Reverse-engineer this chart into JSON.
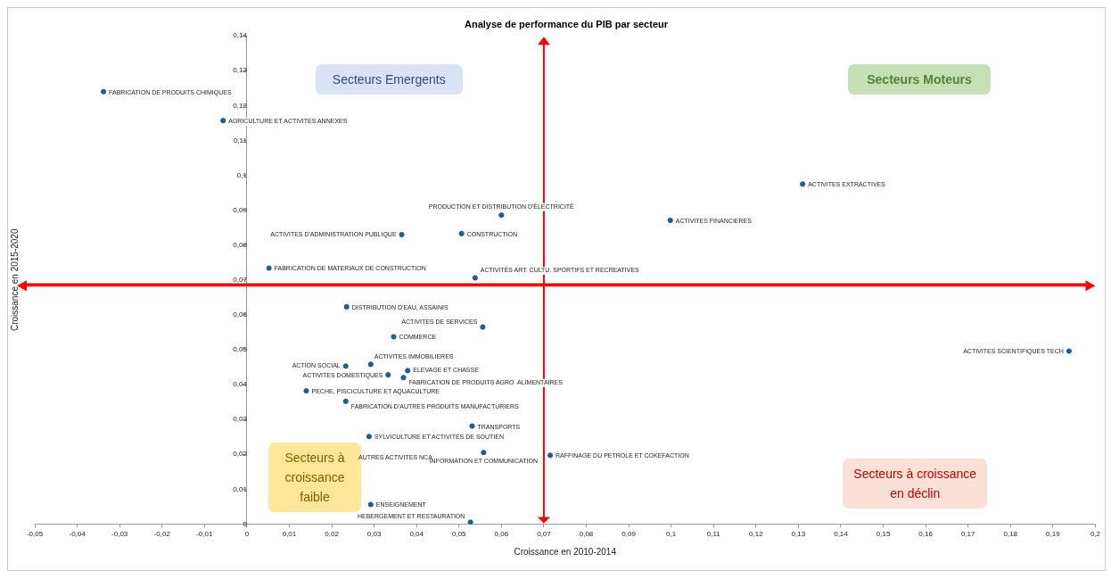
{
  "chart_data": {
    "type": "scatter",
    "title": "Analyse de performance du PIB par secteur",
    "xlabel": "Croissance en 2010-2014",
    "ylabel": "Croissance en 2015-2020",
    "xlim": [
      -0.05,
      0.2
    ],
    "xticks": [
      {
        "value": -0.05,
        "label": "-0,05"
      },
      {
        "value": -0.04,
        "label": "-0,04"
      },
      {
        "value": -0.03,
        "label": "-0,03"
      },
      {
        "value": -0.02,
        "label": "-0,02"
      },
      {
        "value": -0.01,
        "label": "-0,01"
      },
      0,
      {
        "value": 0.01,
        "label": "0,01"
      },
      {
        "value": 0.02,
        "label": "0,02"
      },
      {
        "value": 0.03,
        "label": "0,03"
      },
      {
        "value": 0.04,
        "label": "0,04"
      },
      {
        "value": 0.05,
        "label": "0,05"
      },
      {
        "value": 0.06,
        "label": "0,06"
      },
      {
        "value": 0.07,
        "label": "0,07"
      },
      {
        "value": 0.08,
        "label": "0,08"
      },
      {
        "value": 0.09,
        "label": "0,09"
      },
      {
        "value": 0.1,
        "label": "0,1"
      },
      {
        "value": 0.11,
        "label": "0,11"
      },
      {
        "value": 0.12,
        "label": "0,12"
      },
      {
        "value": 0.13,
        "label": "0,13"
      },
      {
        "value": 0.14,
        "label": "0,14"
      },
      {
        "value": 0.15,
        "label": "0,15"
      },
      {
        "value": 0.16,
        "label": "0,16"
      },
      {
        "value": 0.17,
        "label": "0,17"
      },
      {
        "value": 0.18,
        "label": "0,18"
      },
      {
        "value": 0.19,
        "label": "0,19"
      },
      {
        "value": 0.2,
        "label": "0,2"
      }
    ],
    "ylim": [
      0,
      0.14
    ],
    "yticks": [
      0,
      {
        "value": 0.01,
        "label": "0,01"
      },
      {
        "value": 0.02,
        "label": "0,02"
      },
      {
        "value": 0.03,
        "label": "0,03"
      },
      {
        "value": 0.04,
        "label": "0,04"
      },
      {
        "value": 0.05,
        "label": "0,05"
      },
      {
        "value": 0.06,
        "label": "0,06"
      },
      {
        "value": 0.07,
        "label": "0,07"
      },
      {
        "value": 0.08,
        "label": "0,08"
      },
      {
        "value": 0.09,
        "label": "0,09"
      },
      {
        "value": 0.1,
        "label": "0,1"
      },
      {
        "value": 0.11,
        "label": "0,11"
      },
      {
        "value": 0.12,
        "label": "0,12"
      },
      {
        "value": 0.13,
        "label": "0,13"
      },
      {
        "value": 0.14,
        "label": "0,14"
      }
    ],
    "grid": false,
    "legend": false,
    "marker": "circle",
    "series": [
      {
        "name": "FABRICATION DE PRODUITS CHIMIQUES",
        "color": "#1f5f8b",
        "x": [
          -0.0338
        ],
        "values": [
          0.124
        ]
      },
      {
        "name": "AGRICULTURE ET ACTIVITES ANNEXES",
        "color": "#1f5f8b",
        "x": [
          -0.0056
        ],
        "values": [
          0.1157
        ]
      },
      {
        "name": "PRODUCTION ET DISTRIBUTION D'ÉLECTRICITÉ",
        "color": "#1f5f8b",
        "x": [
          0.06
        ],
        "values": [
          0.0886
        ]
      },
      {
        "name": "ACTIVITES D'ADMINISTRATION PUBLIQUE",
        "color": "#1f5f8b",
        "x": [
          0.0365
        ],
        "values": [
          0.083
        ]
      },
      {
        "name": "CONSTRUCTION",
        "color": "#1f5f8b",
        "x": [
          0.0506
        ],
        "values": [
          0.0833
        ]
      },
      {
        "name": "ACTIVITES EXTRACTIVES",
        "color": "#1f5f8b",
        "x": [
          0.131
        ],
        "values": [
          0.0975
        ]
      },
      {
        "name": "ACTIVITES FINANCIERES",
        "color": "#1f5f8b",
        "x": [
          0.0998
        ],
        "values": [
          0.0871
        ]
      },
      {
        "name": "FABRICATION DE MATERIAUX DE CONSTRUCTION",
        "color": "#1f5f8b",
        "x": [
          0.0052
        ],
        "values": [
          0.0734
        ]
      },
      {
        "name": "ACTIVITÉS ART. CULTU. SPORTIFS ET RECREATIVES",
        "color": "#1f5f8b",
        "x": [
          0.0538
        ],
        "values": [
          0.0706
        ]
      },
      {
        "name": "DISTRIBUTION D'EAU, ASSAINIS",
        "color": "#1f5f8b",
        "x": [
          0.0235
        ],
        "values": [
          0.0623
        ]
      },
      {
        "name": "ACTIVITES DE SERVICES",
        "color": "#1f5f8b",
        "x": [
          0.0556
        ],
        "values": [
          0.0565
        ]
      },
      {
        "name": "COMMERCE",
        "color": "#1f5f8b",
        "x": [
          0.0346
        ],
        "values": [
          0.0537
        ]
      },
      {
        "name": "ACTION SOCIAL",
        "color": "#1f5f8b",
        "x": [
          0.0233
        ],
        "values": [
          0.0453
        ]
      },
      {
        "name": "ACTIVITES IMMOBILIERES",
        "color": "#1f5f8b",
        "x": [
          0.0292
        ],
        "values": [
          0.0458
        ]
      },
      {
        "name": "ELEVAGE ET CHASSE",
        "color": "#1f5f8b",
        "x": [
          0.0379
        ],
        "values": [
          0.044
        ]
      },
      {
        "name": "ACTIVITES DOMESTIQUES",
        "color": "#1f5f8b",
        "x": [
          0.0333
        ],
        "values": [
          0.0428
        ]
      },
      {
        "name": "FABRICATION DE PRODUITS AGRO  ALIMENTAIRES",
        "color": "#1f5f8b",
        "x": [
          0.0369
        ],
        "values": [
          0.042
        ]
      },
      {
        "name": "PECHE, PISCICULTURE ET AQUACULTURE",
        "color": "#1f5f8b",
        "x": [
          0.014
        ],
        "values": [
          0.0382
        ]
      },
      {
        "name": "FABRICATION D'AUTRES PRODUITS MANUFACTURIERS",
        "color": "#1f5f8b",
        "x": [
          0.0233
        ],
        "values": [
          0.0352
        ]
      },
      {
        "name": "TRANSPORTS",
        "color": "#1f5f8b",
        "x": [
          0.0531
        ],
        "values": [
          0.0281
        ]
      },
      {
        "name": "SYLVICULTURE ET ACTIVITÉS DE SOUTIEN",
        "color": "#1f5f8b",
        "x": [
          0.0288
        ],
        "values": [
          0.0251
        ]
      },
      {
        "name": "INFORMATION ET COMMUNICATION",
        "color": "#1f5f8b",
        "x": [
          0.0558
        ],
        "values": [
          0.0205
        ]
      },
      {
        "name": "RAFFINAGE DU PETROLE ET COKEFACTION",
        "color": "#1f5f8b",
        "x": [
          0.0715
        ],
        "values": [
          0.0197
        ]
      },
      {
        "name": "ENSEIGNEMENT",
        "color": "#1f5f8b",
        "x": [
          0.0292
        ],
        "values": [
          0.0056
        ]
      },
      {
        "name": "HEBERGEMENT ET RESTAURATION",
        "color": "#1f5f8b",
        "x": [
          0.0527
        ],
        "values": [
          0.0005
        ]
      },
      {
        "name": "ACTIVITES SCIENTIFIQUES TECH",
        "color": "#1f5f8b",
        "x": [
          0.1938
        ],
        "values": [
          0.0496
        ]
      }
    ],
    "ref_lines": [
      {
        "axis": "x",
        "value": 0.07,
        "color": "#ff0000"
      },
      {
        "axis": "y",
        "value": 0.0686,
        "color": "#ff0000"
      }
    ],
    "annotations": [
      "Secteurs Emergents",
      "Secteurs Moteurs",
      "Secteurs à croissance faible",
      "Secteurs à croissance en déclin",
      "AUTRES ACTIVITES NCA"
    ]
  }
}
